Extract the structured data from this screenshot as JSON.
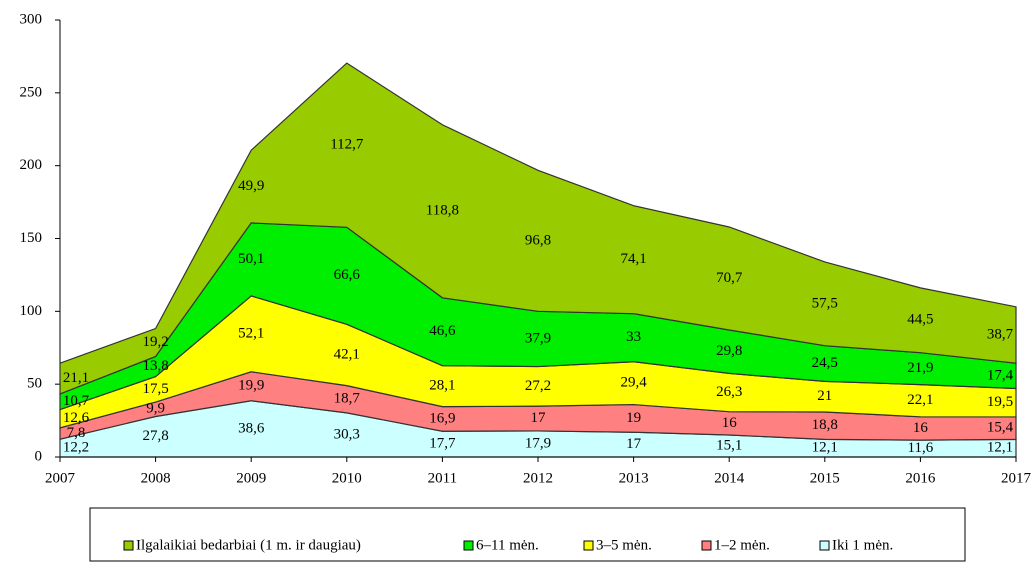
{
  "chart_data": {
    "type": "stacked_area",
    "x": [
      2007,
      2008,
      2009,
      2010,
      2011,
      2012,
      2013,
      2014,
      2015,
      2016,
      2017
    ],
    "xlim": [
      2007,
      2017
    ],
    "xticks": [
      2007,
      2008,
      2009,
      2010,
      2011,
      2012,
      2013,
      2014,
      2015,
      2016,
      2017
    ],
    "ylim": [
      0,
      300
    ],
    "yticks": [
      0,
      50,
      100,
      150,
      200,
      250,
      300
    ],
    "legend": "bottom",
    "series": [
      {
        "name": "Iki 1 mėn.",
        "color": "#ccffff",
        "values": [
          12.2,
          27.8,
          38.6,
          30.3,
          17.7,
          17.9,
          17,
          15.1,
          12.1,
          11.6,
          12.1
        ],
        "value_labels": [
          "12,2",
          "27,8",
          "38,6",
          "30,3",
          "17,7",
          "17,9",
          "17",
          "15,1",
          "12,1",
          "11,6",
          "12,1"
        ]
      },
      {
        "name": "1–2 mėn.",
        "color": "#ff8080",
        "values": [
          7.8,
          9.9,
          19.9,
          18.7,
          16.9,
          17,
          19,
          16,
          18.8,
          16,
          15.4
        ],
        "value_labels": [
          "7,8",
          "9,9",
          "19,9",
          "18,7",
          "16,9",
          "17",
          "19",
          "16",
          "18,8",
          "16",
          "15,4"
        ]
      },
      {
        "name": "3–5 mėn.",
        "color": "#ffff00",
        "values": [
          12.6,
          17.5,
          52.1,
          42.1,
          28.1,
          27.2,
          29.4,
          26.3,
          21,
          22.1,
          19.5
        ],
        "value_labels": [
          "12,6",
          "17,5",
          "52,1",
          "42,1",
          "28,1",
          "27,2",
          "29,4",
          "26,3",
          "21",
          "22,1",
          "19,5"
        ]
      },
      {
        "name": "6–11 mėn.",
        "color": "#00ee00",
        "values": [
          10.7,
          13.8,
          50.1,
          66.6,
          46.6,
          37.9,
          33,
          29.8,
          24.5,
          21.9,
          17.4
        ],
        "value_labels": [
          "10,7",
          "13,8",
          "50,1",
          "66,6",
          "46,6",
          "37,9",
          "33",
          "29,8",
          "24,5",
          "21,9",
          "17,4"
        ]
      },
      {
        "name": "Ilgalaikiai bedarbiai (1 m. ir daugiau)",
        "color": "#99cc00",
        "values": [
          21.1,
          19.2,
          49.9,
          112.7,
          118.8,
          96.8,
          74.1,
          70.7,
          57.5,
          44.5,
          38.7
        ],
        "value_labels": [
          "21,1",
          "19,2",
          "49,9",
          "112,7",
          "118,8",
          "96,8",
          "74,1",
          "70,7",
          "57,5",
          "44,5",
          "38,7"
        ]
      }
    ]
  }
}
